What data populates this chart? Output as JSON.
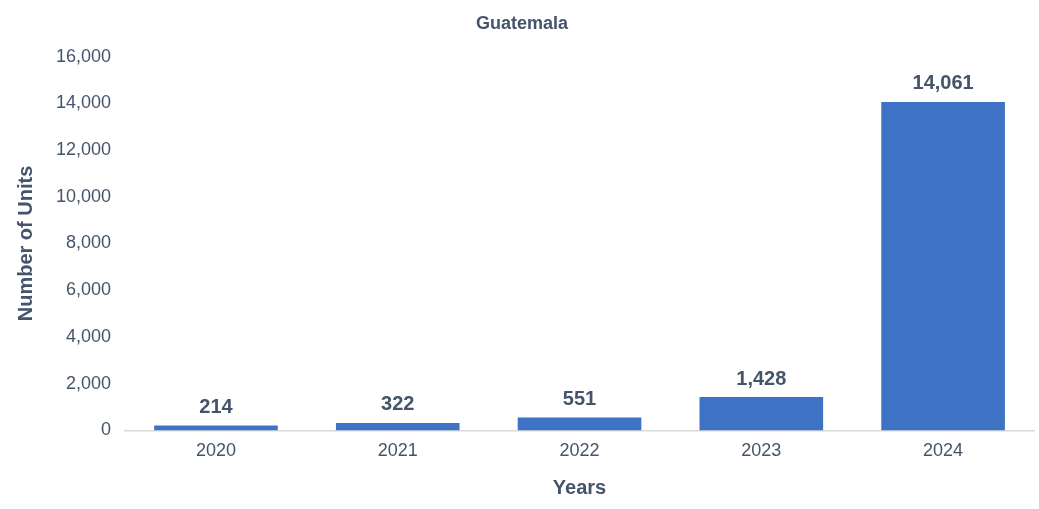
{
  "chart_data": {
    "type": "bar",
    "title": "Guatemala",
    "xlabel": "Years",
    "ylabel": "Number of Units",
    "categories": [
      "2020",
      "2021",
      "2022",
      "2023",
      "2024"
    ],
    "values": [
      214,
      322,
      551,
      1428,
      14061
    ],
    "color": "#3d72c4",
    "value_labels": [
      "214",
      "322",
      "551",
      "1,428",
      "14,061"
    ],
    "ylim": [
      0,
      16000
    ],
    "yticks": [
      {
        "value": 0,
        "label": "0"
      },
      {
        "value": 2000,
        "label": "2,000"
      },
      {
        "value": 4000,
        "label": "4,000"
      },
      {
        "value": 6000,
        "label": "6,000"
      },
      {
        "value": 8000,
        "label": "8,000"
      },
      {
        "value": 10000,
        "label": "10,000"
      },
      {
        "value": 12000,
        "label": "12,000"
      },
      {
        "value": 14000,
        "label": "14,000"
      },
      {
        "value": 16000,
        "label": "16,000"
      }
    ],
    "grid": false,
    "legend": false
  }
}
